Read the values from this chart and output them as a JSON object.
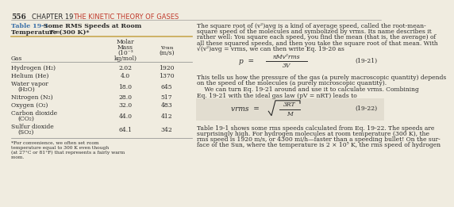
{
  "page_number": "556",
  "chapter_pre": "CHAPTER 19  ",
  "chapter_post": "THE KINETIC THEORY OF GASES",
  "table_title_blue": "Table 19-1",
  "table_title_bold": " Some RMS Speeds at Room",
  "table_title_line2a": "Temperature (",
  "table_title_line2b": "T",
  "table_title_line2c": " = 300 K)*",
  "col2_lines": [
    "Molar",
    "Mass",
    "(10⁻³",
    "kg/mol)"
  ],
  "col3_lines": [
    "vᵣₘₘ",
    "(m/s)"
  ],
  "col1_label": "Gas",
  "gases": [
    {
      "name1": "Hydrogen (H₂)",
      "name2": null,
      "mass": "2.02",
      "vrms": "1920"
    },
    {
      "name1": "Helium (He)",
      "name2": null,
      "mass": "4.0",
      "vrms": "1370"
    },
    {
      "name1": "Water vapor",
      "name2": "(H₂O)",
      "mass": "18.0",
      "vrms": "645"
    },
    {
      "name1": "Nitrogen (N₂)",
      "name2": null,
      "mass": "28.0",
      "vrms": "517"
    },
    {
      "name1": "Oxygen (O₂)",
      "name2": null,
      "mass": "32.0",
      "vrms": "483"
    },
    {
      "name1": "Carbon dioxide",
      "name2": "(CO₂)",
      "mass": "44.0",
      "vrms": "412"
    },
    {
      "name1": "Sulfur dioxide",
      "name2": "(SO₂)",
      "mass": "64.1",
      "vrms": "342"
    }
  ],
  "footnote_lines": [
    "*For convenience, we often set room",
    "temperature equal to 300 K even though",
    "(at 27°C or 81°F) that represents a fairly warm",
    "room."
  ],
  "p1_lines": [
    "The square root of (v²)avg is a kind of average speed, called the root-mean-",
    "square speed of the molecules and symbolized by vrms. Its name describes it",
    "rather well: You square each speed, you find the mean (that is, the average) of",
    "all these squared speeds, and then you take the square root of that mean. With",
    "√(v²)avg = vrms, we can then write Eq. 19-20 as"
  ],
  "eq1_lhs": "p  =",
  "eq1_num": "nMv²rms",
  "eq1_den": "3V",
  "eq1_label": "(19-21)",
  "p2_lines": [
    "This tells us how the pressure of the gas (a purely macroscopic quantity) depends",
    "on the speed of the molecules (a purely microscopic quantity)."
  ],
  "p3_lines": [
    "    We can turn Eq. 19-21 around and use it to calculate vrms. Combining",
    "Eq. 19-21 with the ideal gas law (pV = nRT) leads to"
  ],
  "eq2_lhs": "vrms  =",
  "eq2_num": "3RT",
  "eq2_den": "M",
  "eq2_label": "(19-22)",
  "p4_lines": [
    "Table 19-1 shows some rms speeds calculated from Eq. 19-22. The speeds are",
    "surprisingly high. For hydrogen molecules at room temperature (300 K), the",
    "rms speed is 1920 m/s, or 4300 mi/h—faster than a speeding bullet! On the sur-",
    "face of the Sun, where the temperature is 2 × 10⁵ K, the rms speed of hydrogen"
  ],
  "bg_color": "#f0ece0",
  "text_color": "#2a2a2a",
  "header_red": "#c0392b",
  "title_blue": "#3a6fa8",
  "eq_box_color": "#e2ddd0",
  "line_color": "#888888",
  "table_divider_color": "#c8a850"
}
